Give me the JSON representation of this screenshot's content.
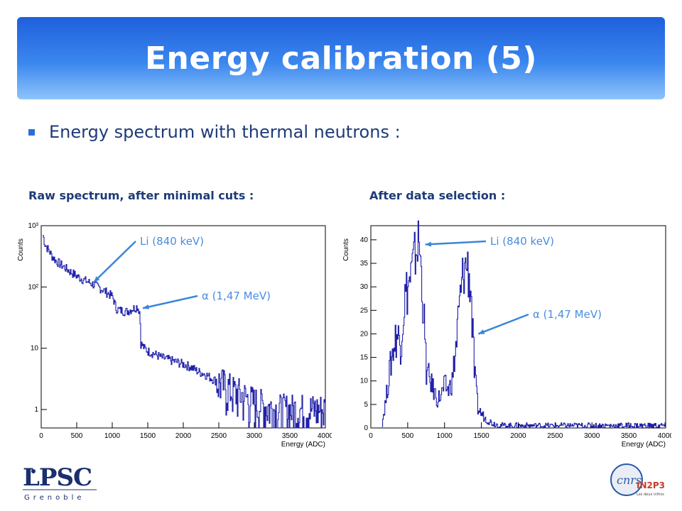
{
  "header": {
    "title": "Energy calibration (5)"
  },
  "bullet": {
    "text": "Energy spectrum with thermal neutrons :"
  },
  "captions": {
    "left": "Raw spectrum, after minimal cuts :",
    "right": "After data selection :"
  },
  "logos": {
    "left_main": "LPSC",
    "left_sub": "Grenoble",
    "right_main": "IN2P3",
    "right_sub": "Les deux infinis"
  },
  "colors": {
    "series": "#2020a8",
    "annotation": "#4a8ddf",
    "title_bar": "#3a86ee"
  },
  "chart_data": [
    {
      "type": "line",
      "title": "",
      "xlabel": "Energy (ADC)",
      "ylabel": "Counts",
      "xlim": [
        0,
        4000
      ],
      "ylim": [
        0.5,
        1000
      ],
      "yscale": "log",
      "xticks": [
        0,
        500,
        1000,
        1500,
        2000,
        2500,
        3000,
        3500,
        4000
      ],
      "yticks": [
        {
          "value": 1,
          "label": "1"
        },
        {
          "value": 10,
          "label": "10"
        },
        {
          "value": 100,
          "label": "10²"
        },
        {
          "value": 1000,
          "label": "10³"
        }
      ],
      "series": [
        {
          "x": [
            20,
            50,
            100,
            150,
            200,
            300,
            400,
            500,
            600,
            700,
            800,
            900,
            1000,
            1050,
            1100,
            1200,
            1300,
            1350,
            1380,
            1400,
            1450,
            1500,
            1600,
            1700,
            1800,
            1900,
            2000,
            2100,
            2200,
            2300,
            2400,
            2500,
            2600,
            2700,
            2800,
            2900,
            3000,
            3100,
            3200,
            3300,
            3400,
            3500,
            3600,
            3700,
            3800,
            3900,
            4000
          ],
          "y": [
            700,
            500,
            400,
            320,
            270,
            220,
            180,
            150,
            130,
            115,
            100,
            85,
            70,
            45,
            42,
            40,
            45,
            48,
            40,
            12,
            10,
            9,
            8,
            7,
            6.5,
            6,
            5.5,
            5,
            4.2,
            3.8,
            3.2,
            2.8,
            2.4,
            2,
            1.8,
            1.5,
            1.3,
            1.2,
            1.1,
            1,
            1,
            1,
            1,
            1,
            1,
            1,
            1
          ]
        }
      ],
      "annotations": [
        {
          "text": "Li (840 keV)",
          "target_x": 700,
          "target_y": 120
        },
        {
          "text": "α (1,47 MeV)",
          "target_x": 1390,
          "target_y": 45
        }
      ]
    },
    {
      "type": "line",
      "title": "",
      "xlabel": "Energy (ADC)",
      "ylabel": "Counts",
      "xlim": [
        0,
        4000
      ],
      "ylim": [
        0,
        43
      ],
      "yscale": "linear",
      "xticks": [
        0,
        500,
        1000,
        1500,
        2000,
        2500,
        3000,
        3500,
        4000
      ],
      "yticks": [
        {
          "value": 0,
          "label": "0"
        },
        {
          "value": 5,
          "label": "5"
        },
        {
          "value": 10,
          "label": "10"
        },
        {
          "value": 15,
          "label": "15"
        },
        {
          "value": 20,
          "label": "20"
        },
        {
          "value": 25,
          "label": "25"
        },
        {
          "value": 30,
          "label": "30"
        },
        {
          "value": 35,
          "label": "35"
        },
        {
          "value": 40,
          "label": "40"
        }
      ],
      "series": [
        {
          "x": [
            150,
            200,
            250,
            300,
            350,
            400,
            450,
            500,
            550,
            600,
            650,
            700,
            750,
            800,
            850,
            900,
            950,
            1000,
            1050,
            1100,
            1150,
            1200,
            1250,
            1300,
            1350,
            1400,
            1450,
            1500,
            1550,
            1600,
            1650,
            1700,
            1800,
            1900,
            2000,
            2200,
            2400,
            2600,
            2800,
            3000,
            3200,
            3400,
            3600,
            3800,
            4000
          ],
          "y": [
            1,
            6,
            12,
            17,
            20,
            18,
            27,
            30,
            33,
            37,
            40,
            28,
            12,
            10,
            8,
            6,
            7,
            9,
            8,
            10,
            17,
            26,
            33,
            35,
            30,
            12,
            4,
            3,
            2,
            1.5,
            1,
            0.8,
            0.5,
            0.5,
            0.5,
            0.5,
            0.5,
            0.5,
            0.5,
            0.5,
            0.5,
            0.5,
            0.5,
            0.5,
            0.5
          ]
        }
      ],
      "annotations": [
        {
          "text": "Li (840 keV)",
          "target_x": 700,
          "target_y": 39
        },
        {
          "text": "α (1,47 MeV)",
          "target_x": 1420,
          "target_y": 20
        }
      ]
    }
  ]
}
